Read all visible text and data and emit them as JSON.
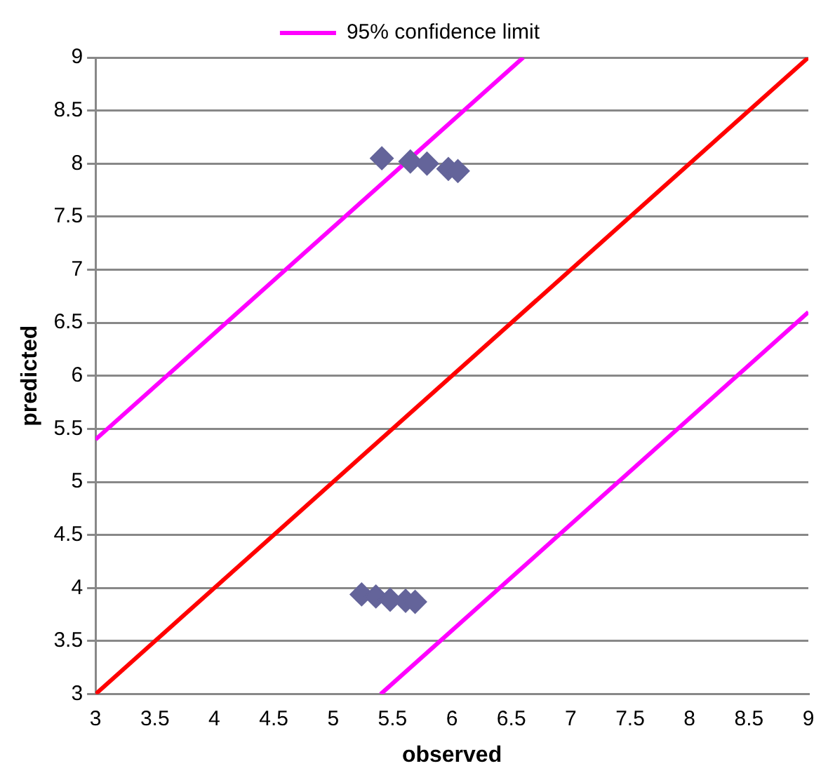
{
  "chart_data": {
    "type": "scatter",
    "xlabel": "observed",
    "ylabel": "predicted",
    "xlim": [
      3,
      9
    ],
    "ylim": [
      3,
      9
    ],
    "xticks": [
      3,
      3.5,
      4,
      4.5,
      5,
      5.5,
      6,
      6.5,
      7,
      7.5,
      8,
      8.5,
      9
    ],
    "yticks": [
      3,
      3.5,
      4,
      4.5,
      5,
      5.5,
      6,
      6.5,
      7,
      7.5,
      8,
      8.5,
      9
    ],
    "grid": "y",
    "legend": "top",
    "series": [
      {
        "marker": "diamond",
        "color": "#64649a",
        "x": [
          5.41,
          5.65,
          5.79,
          5.97,
          6.05,
          5.24,
          5.36,
          5.48,
          5.61,
          5.69
        ],
        "values": [
          8.05,
          8.02,
          8.0,
          7.95,
          7.93,
          3.94,
          3.92,
          3.89,
          3.88,
          3.87
        ]
      },
      {
        "type": "line",
        "marker": "none",
        "color": "#ff0000",
        "x": [
          3,
          9
        ],
        "values": [
          3,
          9
        ]
      },
      {
        "type": "line",
        "marker": "none",
        "name": "95% confidence limit",
        "color": "#ff00ff",
        "x": [
          3,
          6.6
        ],
        "values": [
          5.4,
          9
        ]
      },
      {
        "type": "line",
        "marker": "none",
        "color": "#ff00ff",
        "x": [
          5.4,
          9
        ],
        "values": [
          3,
          6.6
        ]
      }
    ]
  }
}
